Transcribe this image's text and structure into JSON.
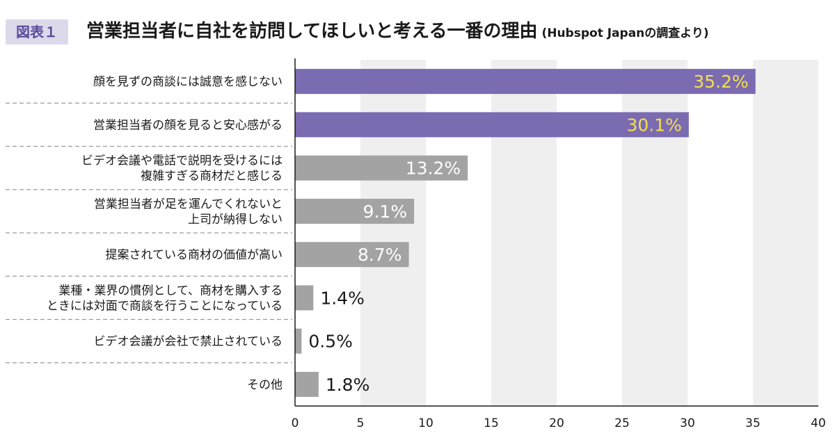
{
  "figure_badge": "図表１",
  "title": "営業担当者に自社を訪問してほしいと考える一番の理由",
  "subtitle": "(Hubspot Japanの調査より)",
  "colors": {
    "highlight": "#7b6bb1",
    "normal": "#a3a3a3",
    "highlight_label": "#f4e04d",
    "inside_label": "#ffffff",
    "outside_label": "#1a1a1a",
    "band": "#efefef"
  },
  "chart_data": {
    "type": "bar",
    "orientation": "horizontal",
    "title": "営業担当者に自社を訪問してほしいと考える一番の理由",
    "xlim": [
      0,
      40
    ],
    "xticks": [
      "0",
      "5",
      "10",
      "15",
      "20",
      "25",
      "30",
      "35",
      "40"
    ],
    "grid": "alternating vertical bands",
    "unit": "%",
    "bars": [
      {
        "lines": [
          "顔を見ずの商談には誠意を感じない"
        ],
        "value": 35.2,
        "label": "35.2%",
        "highlight": true
      },
      {
        "lines": [
          "営業担当者の顔を見ると安心感がる"
        ],
        "value": 30.1,
        "label": "30.1%",
        "highlight": true
      },
      {
        "lines": [
          "ビデオ会議や電話で説明を受けるには",
          "複雑すぎる商材だと感じる"
        ],
        "value": 13.2,
        "label": "13.2%",
        "highlight": false
      },
      {
        "lines": [
          "営業担当者が足を運んでくれないと",
          "上司が納得しない"
        ],
        "value": 9.1,
        "label": "9.1%",
        "highlight": false
      },
      {
        "lines": [
          "提案されている商材の価値が高い"
        ],
        "value": 8.7,
        "label": "8.7%",
        "highlight": false
      },
      {
        "lines": [
          "業種・業界の慣例として、商材を購入する",
          "ときには対面で商談を行うことになっている"
        ],
        "value": 1.4,
        "label": "1.4%",
        "highlight": false
      },
      {
        "lines": [
          "ビデオ会議が会社で禁止されている"
        ],
        "value": 0.5,
        "label": "0.5%",
        "highlight": false
      },
      {
        "lines": [
          "その他"
        ],
        "value": 1.8,
        "label": "1.8%",
        "highlight": false
      }
    ]
  }
}
